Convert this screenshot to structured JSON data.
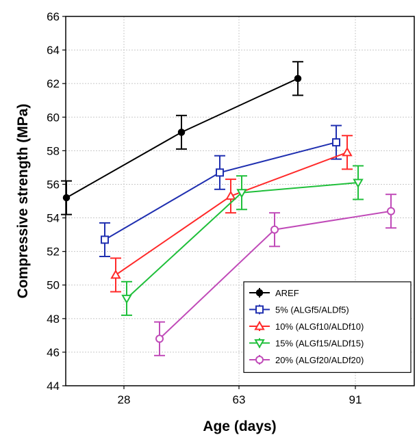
{
  "chart_data": {
    "type": "line",
    "xlabel": "Age (days)",
    "ylabel": "Compressive strength (MPa)",
    "x_ticks": [
      "28",
      "63",
      "91"
    ],
    "y_ticks": [
      "44",
      "46",
      "48",
      "50",
      "52",
      "54",
      "56",
      "58",
      "60",
      "62",
      "64",
      "66"
    ],
    "ylim": [
      44,
      66
    ],
    "grid": true,
    "legend_position": "bottom-right",
    "error_bars": true,
    "series": [
      {
        "name": "AREF",
        "color": "#000000",
        "marker": "filled-circle",
        "x": [
          "28",
          "63",
          "91"
        ],
        "values": [
          55.2,
          59.1,
          62.3
        ],
        "error": [
          1.0,
          1.0,
          1.0
        ]
      },
      {
        "name": "5% (ALGf5/ALDf5)",
        "color": "#1f2fb0",
        "marker": "square",
        "x": [
          "28",
          "63",
          "91"
        ],
        "values": [
          52.7,
          56.7,
          58.5
        ],
        "error": [
          1.0,
          1.0,
          1.0
        ]
      },
      {
        "name": "10% (ALGf10/ALDf10)",
        "color": "#ff2a2a",
        "marker": "triangle",
        "x": [
          "28",
          "63",
          "91"
        ],
        "values": [
          50.6,
          55.3,
          57.9
        ],
        "error": [
          1.0,
          1.0,
          1.0
        ]
      },
      {
        "name": "15% (ALGf15/ALDf15)",
        "color": "#1fbf3a",
        "marker": "down-triangle",
        "x": [
          "28",
          "63",
          "91"
        ],
        "values": [
          49.2,
          55.5,
          56.1
        ],
        "error": [
          1.0,
          1.0,
          1.0
        ]
      },
      {
        "name": "20% (ALGf20/ALDf20)",
        "color": "#c04ab8",
        "marker": "circle",
        "x": [
          "28",
          "63",
          "91"
        ],
        "values": [
          46.8,
          53.3,
          54.4
        ],
        "error": [
          1.0,
          1.0,
          1.0
        ]
      }
    ]
  }
}
